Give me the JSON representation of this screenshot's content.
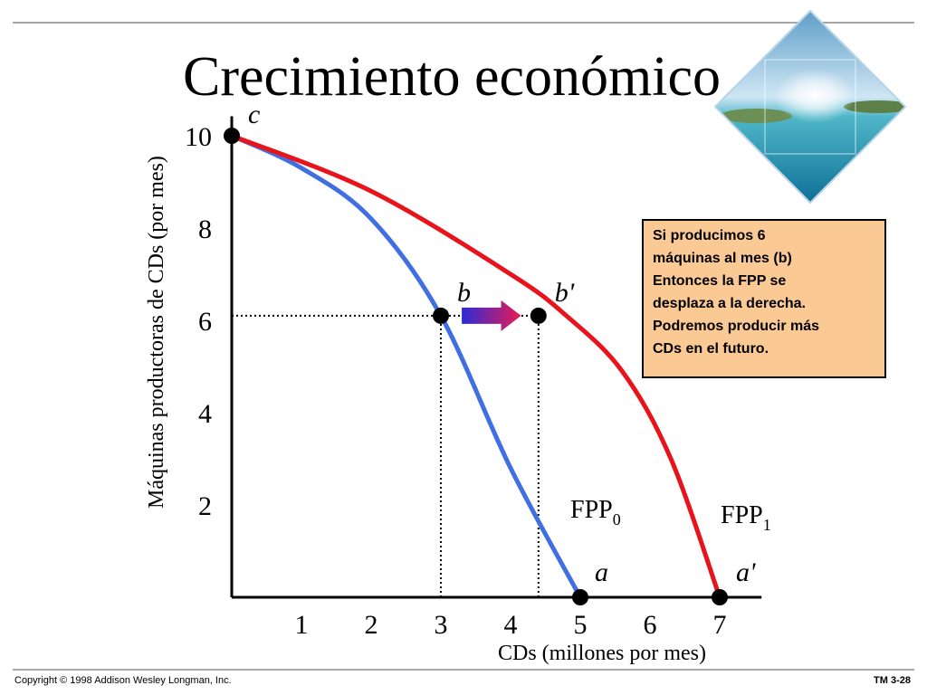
{
  "slide": {
    "title": "Crecimiento económico",
    "copyright": "Copyright © 1998 Addison Wesley Longman, Inc.",
    "slide_number": "TM 3-28",
    "callout_lines": [
      "Si producimos 6",
      "máquinas al mes (b)",
      "Entonces la FPP se",
      "desplaza a la derecha.",
      "Podremos producir más",
      "CDs en el futuro."
    ],
    "image_icon": "island-seascape-diamond-image"
  },
  "chart_data": {
    "type": "line",
    "title": "Crecimiento económico",
    "xlabel": "CDs (millones por mes)",
    "ylabel": "Máquinas productoras de CDs (por mes)",
    "x_ticks": [
      "1",
      "2",
      "3",
      "4",
      "5",
      "6",
      "7"
    ],
    "y_ticks": [
      "2",
      "4",
      "6",
      "8",
      "10"
    ],
    "xlim": [
      0,
      7.6
    ],
    "ylim": [
      0,
      10.5
    ],
    "series": [
      {
        "name_main": "FPP",
        "name_sub": "0",
        "color": "#3f6fe3",
        "points": [
          [
            0,
            10
          ],
          [
            1,
            9.3
          ],
          [
            2,
            8.2
          ],
          [
            3,
            6.1
          ],
          [
            4,
            2.8
          ],
          [
            5,
            0
          ]
        ]
      },
      {
        "name_main": "FPP",
        "name_sub": "1",
        "color": "#e8141c",
        "points": [
          [
            0,
            10
          ],
          [
            2,
            8.8
          ],
          [
            4,
            7.0
          ],
          [
            4.8,
            6.1
          ],
          [
            5.6,
            4.9
          ],
          [
            6.3,
            3.0
          ],
          [
            7,
            0
          ]
        ]
      }
    ],
    "points": [
      {
        "label": "c",
        "x": 0,
        "y": 10
      },
      {
        "label": "b",
        "x": 3,
        "y": 6.1
      },
      {
        "label": "b'",
        "x": 4.4,
        "y": 6.1
      },
      {
        "label": "a",
        "x": 5,
        "y": 0
      },
      {
        "label": "a'",
        "x": 7,
        "y": 0
      }
    ],
    "guide_lines": [
      {
        "from": [
          0,
          6.1
        ],
        "to": [
          4.4,
          6.1
        ]
      },
      {
        "from": [
          3,
          0
        ],
        "to": [
          3,
          6.1
        ]
      },
      {
        "from": [
          4.4,
          0
        ],
        "to": [
          4.4,
          6.1
        ]
      }
    ],
    "shift_arrow": {
      "from": [
        3.3,
        6.1
      ],
      "to": [
        4.15,
        6.1
      ],
      "color_start": "#2b2bd6",
      "color_end": "#e81c54"
    }
  }
}
